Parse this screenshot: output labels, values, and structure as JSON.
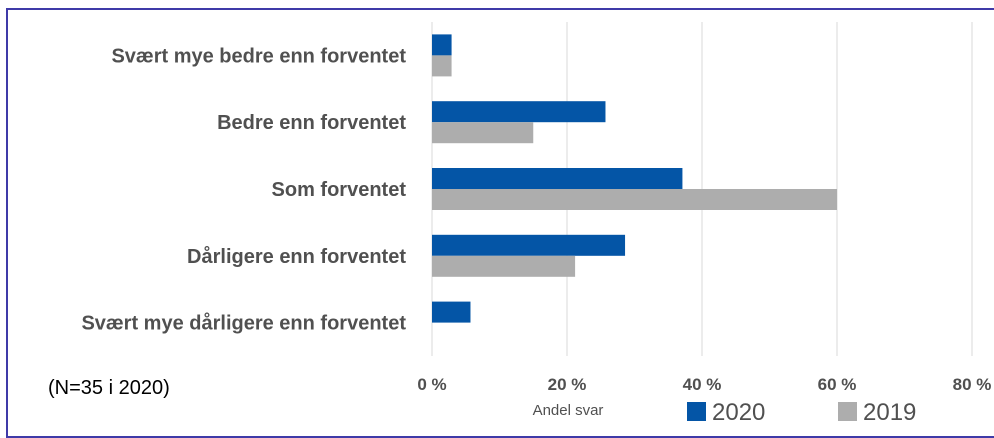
{
  "chart_data": {
    "type": "bar",
    "orientation": "horizontal",
    "categories": [
      "Svært mye bedre enn forventet",
      "Bedre enn forventet",
      "Som forventet",
      "Dårligere enn forventet",
      "Svært mye dårligere enn forventet"
    ],
    "series": [
      {
        "name": "2020",
        "values": [
          2.9,
          25.7,
          37.1,
          28.6,
          5.7
        ],
        "color": "#0455a6"
      },
      {
        "name": "2019",
        "values": [
          2.9,
          15.0,
          60.0,
          21.2,
          0
        ],
        "color": "#adadad"
      }
    ],
    "xlabel": "Andel svar",
    "x_ticks": [
      "0 %",
      "20 %",
      "40 %",
      "60 %",
      "80 %"
    ],
    "xlim": [
      0,
      80
    ],
    "grid": true,
    "legend_position": "bottom",
    "note": "(N=35 i 2020)"
  }
}
